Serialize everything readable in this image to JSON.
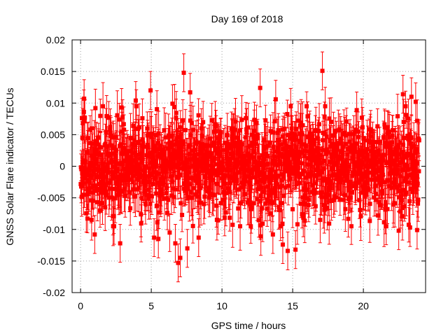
{
  "chart_data": {
    "type": "scatter",
    "title": "Day 169 of 2018",
    "xlabel": "GPS time / hours",
    "ylabel": "GNSS Solar Flare indicator / TECUs",
    "xlim": [
      -0.6,
      24.4
    ],
    "ylim": [
      -0.02,
      0.02
    ],
    "x_ticks": [
      0,
      5,
      10,
      15,
      20
    ],
    "x_tick_labels": [
      "0",
      "5",
      "10",
      "15",
      "20"
    ],
    "y_ticks": [
      -0.02,
      -0.015,
      -0.01,
      -0.005,
      0,
      0.005,
      0.01,
      0.015,
      0.02
    ],
    "y_tick_labels": [
      "-0.02",
      "-0.015",
      "-0.01",
      "-0.005",
      "0",
      "0.005",
      "0.01",
      "0.015",
      "0.02"
    ],
    "grid": true,
    "series": [
      {
        "name": "GNSS Solar Flare indicator",
        "color": "#ff0000",
        "marker": "square",
        "error_bars": true,
        "typical_error": 0.003,
        "outliers": [
          {
            "x": 0.25,
            "y": 0.0107
          },
          {
            "x": 1.0,
            "y": -0.0108
          },
          {
            "x": 1.05,
            "y": 0.0092
          },
          {
            "x": 2.8,
            "y": -0.0122
          },
          {
            "x": 2.9,
            "y": 0.0093
          },
          {
            "x": 3.9,
            "y": 0.0104
          },
          {
            "x": 4.95,
            "y": 0.012
          },
          {
            "x": 5.2,
            "y": -0.0113
          },
          {
            "x": 5.5,
            "y": -0.0115
          },
          {
            "x": 6.3,
            "y": -0.0105
          },
          {
            "x": 6.5,
            "y": 0.0099
          },
          {
            "x": 6.7,
            "y": -0.0122
          },
          {
            "x": 6.9,
            "y": -0.0153
          },
          {
            "x": 7.05,
            "y": -0.0145
          },
          {
            "x": 7.3,
            "y": 0.0148
          },
          {
            "x": 7.55,
            "y": -0.013
          },
          {
            "x": 7.75,
            "y": 0.0117
          },
          {
            "x": 8.35,
            "y": -0.0113
          },
          {
            "x": 12.7,
            "y": 0.0124
          },
          {
            "x": 12.75,
            "y": -0.0111
          },
          {
            "x": 13.6,
            "y": -0.0108
          },
          {
            "x": 13.8,
            "y": 0.0106
          },
          {
            "x": 14.3,
            "y": -0.0124
          },
          {
            "x": 14.65,
            "y": -0.0134
          },
          {
            "x": 15.2,
            "y": -0.0132
          },
          {
            "x": 17.1,
            "y": 0.0151
          },
          {
            "x": 17.3,
            "y": 0.0095
          },
          {
            "x": 22.5,
            "y": -0.0102
          },
          {
            "x": 22.8,
            "y": 0.0114
          },
          {
            "x": 23.3,
            "y": -0.0097
          },
          {
            "x": 23.4,
            "y": 0.011
          },
          {
            "x": 23.7,
            "y": 0.0102
          },
          {
            "x": 23.8,
            "y": -0.0101
          }
        ]
      }
    ]
  }
}
